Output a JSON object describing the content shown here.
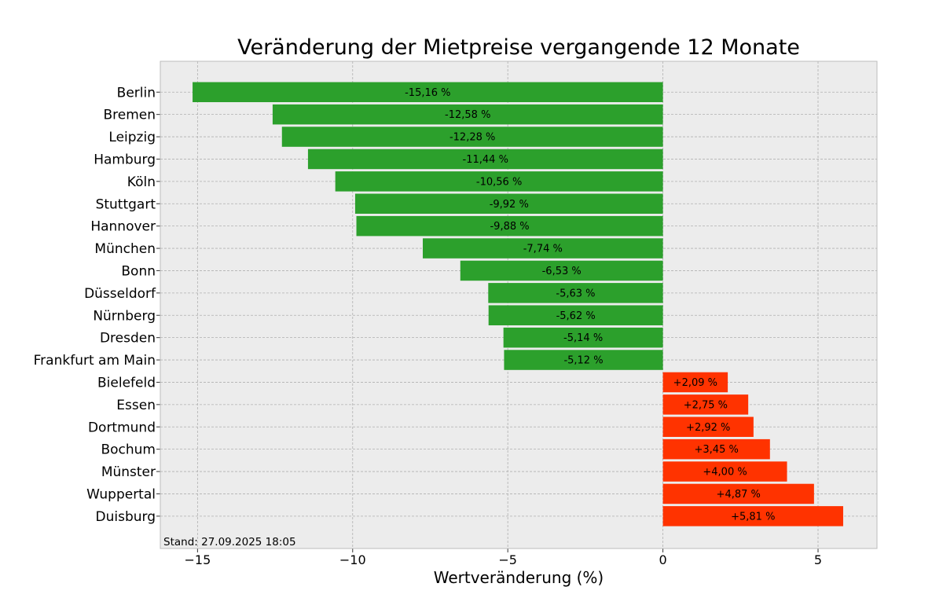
{
  "chart_data": {
    "type": "bar",
    "orientation": "horizontal",
    "title": "Veränderung der Mietpreise vergangende 12 Monate",
    "xlabel": "Wertveränderung (%)",
    "ylabel": "",
    "xlim": [
      -16.2,
      6.9
    ],
    "x_ticks": [
      -15,
      -10,
      -5,
      0,
      5
    ],
    "x_tick_labels": [
      "−15",
      "−10",
      "−5",
      "0",
      "5"
    ],
    "grid": true,
    "colors": {
      "negative": "#2ca02c",
      "positive": "#ff3300",
      "plot_background": "#ececec"
    },
    "categories": [
      "Berlin",
      "Bremen",
      "Leipzig",
      "Hamburg",
      "Köln",
      "Stuttgart",
      "Hannover",
      "München",
      "Bonn",
      "Düsseldorf",
      "Nürnberg",
      "Dresden",
      "Frankfurt am Main",
      "Bielefeld",
      "Essen",
      "Dortmund",
      "Bochum",
      "Münster",
      "Wuppertal",
      "Duisburg"
    ],
    "values": [
      -15.16,
      -12.58,
      -12.28,
      -11.44,
      -10.56,
      -9.92,
      -9.88,
      -7.74,
      -6.53,
      -5.63,
      -5.62,
      -5.14,
      -5.12,
      2.09,
      2.75,
      2.92,
      3.45,
      4.0,
      4.87,
      5.81
    ],
    "data_labels": [
      "-15,16 %",
      "-12,58 %",
      "-12,28 %",
      "-11,44 %",
      "-10,56 %",
      "-9,92 %",
      "-9,88 %",
      "-7,74 %",
      "-6,53 %",
      "-5,63 %",
      "-5,62 %",
      "-5,14 %",
      "-5,12 %",
      "+2,09 %",
      "+2,75 %",
      "+2,92 %",
      "+3,45 %",
      "+4,00 %",
      "+4,87 %",
      "+5,81 %"
    ],
    "annotation": "Stand: 27.09.2025 18:05"
  }
}
